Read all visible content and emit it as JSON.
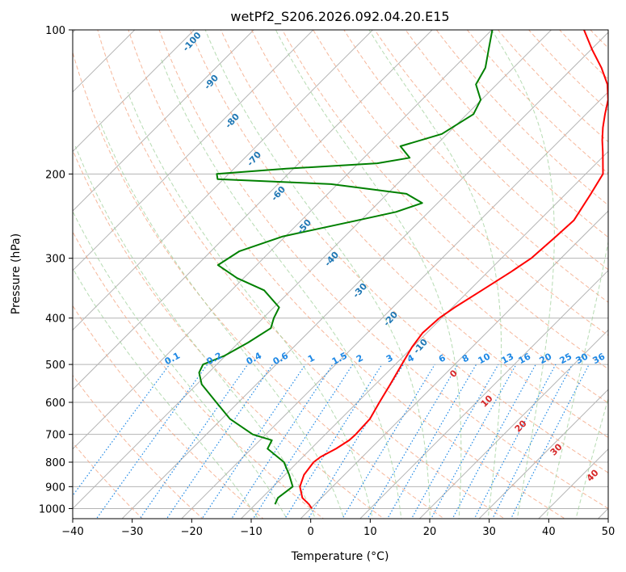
{
  "chart_data": {
    "type": "line",
    "title": "wetPf2_S206.2026.092.04.20.E15",
    "xlabel": "Temperature (°C)",
    "ylabel": "Pressure (hPa)",
    "xlim": [
      -40,
      50
    ],
    "ylim": [
      1050,
      100
    ],
    "y_scale": "log",
    "skew": "skew-T",
    "grid": true,
    "x_ticks": [
      -40,
      -30,
      -20,
      -10,
      0,
      10,
      20,
      30,
      40,
      50
    ],
    "x_tick_labels": [
      "−40",
      "−30",
      "−20",
      "−10",
      "0",
      "10",
      "20",
      "30",
      "40",
      "50"
    ],
    "y_ticks": [
      100,
      200,
      300,
      400,
      500,
      600,
      700,
      800,
      900,
      1000
    ],
    "y_tick_labels": [
      "100",
      "200",
      "300",
      "400",
      "500",
      "600",
      "700",
      "800",
      "900",
      "1000"
    ],
    "series": [
      {
        "role": "temperature",
        "color": "#ff0000",
        "points": [
          [
            1000,
            0.2
          ],
          [
            980,
            -1.0
          ],
          [
            950,
            -3.2
          ],
          [
            900,
            -5.5
          ],
          [
            850,
            -6.8
          ],
          [
            800,
            -7.3
          ],
          [
            780,
            -7.0
          ],
          [
            750,
            -5.8
          ],
          [
            720,
            -5.0
          ],
          [
            700,
            -4.9
          ],
          [
            650,
            -5.1
          ],
          [
            600,
            -6.3
          ],
          [
            550,
            -7.5
          ],
          [
            500,
            -8.9
          ],
          [
            460,
            -10.1
          ],
          [
            430,
            -10.7
          ],
          [
            400,
            -10.4
          ],
          [
            380,
            -9.6
          ],
          [
            350,
            -7.9
          ],
          [
            320,
            -6.1
          ],
          [
            300,
            -5.0
          ],
          [
            270,
            -4.5
          ],
          [
            250,
            -4.2
          ],
          [
            220,
            -5.8
          ],
          [
            200,
            -7.1
          ],
          [
            180,
            -10.8
          ],
          [
            170,
            -12.9
          ],
          [
            160,
            -14.9
          ],
          [
            150,
            -16.8
          ],
          [
            140,
            -18.7
          ],
          [
            130,
            -21.4
          ],
          [
            120,
            -25.2
          ],
          [
            110,
            -29.8
          ],
          [
            100,
            -34.5
          ]
        ]
      },
      {
        "role": "dewpoint",
        "color": "#008000",
        "points": [
          [
            980,
            -6.7
          ],
          [
            950,
            -7.3
          ],
          [
            900,
            -6.7
          ],
          [
            850,
            -9.3
          ],
          [
            800,
            -12.3
          ],
          [
            750,
            -17.3
          ],
          [
            720,
            -18.0
          ],
          [
            700,
            -22.2
          ],
          [
            650,
            -28.6
          ],
          [
            600,
            -33.7
          ],
          [
            550,
            -39.2
          ],
          [
            520,
            -41.6
          ],
          [
            500,
            -42.3
          ],
          [
            480,
            -40.2
          ],
          [
            450,
            -38.4
          ],
          [
            420,
            -37.0
          ],
          [
            400,
            -38.2
          ],
          [
            380,
            -39.1
          ],
          [
            350,
            -44.5
          ],
          [
            330,
            -51.1
          ],
          [
            310,
            -56.5
          ],
          [
            290,
            -55.2
          ],
          [
            270,
            -50.4
          ],
          [
            250,
            -40.6
          ],
          [
            240,
            -35.5
          ],
          [
            230,
            -32.6
          ],
          [
            220,
            -36.8
          ],
          [
            210,
            -51.1
          ],
          [
            205,
            -71.0
          ],
          [
            200,
            -72.0
          ],
          [
            195,
            -61.2
          ],
          [
            190,
            -46.8
          ],
          [
            185,
            -42.3
          ],
          [
            175,
            -45.8
          ],
          [
            165,
            -40.9
          ],
          [
            150,
            -38.9
          ],
          [
            140,
            -40.1
          ],
          [
            130,
            -43.5
          ],
          [
            120,
            -44.7
          ],
          [
            110,
            -47.2
          ],
          [
            100,
            -49.9
          ]
        ]
      }
    ],
    "mixing_ratio_labels": [
      "0.1",
      "0.2",
      "0.4",
      "0.6",
      "1",
      "1.5",
      "2",
      "3",
      "4",
      "6",
      "8",
      "10",
      "13",
      "16",
      "20",
      "25",
      "30",
      "36"
    ],
    "dry_adiabat_labels": [
      "-100",
      "-90",
      "-80",
      "-70",
      "-60",
      "-50",
      "-40",
      "-30",
      "-20",
      "-10"
    ],
    "moist_adiabat_labels": [
      "0",
      "10",
      "20",
      "30",
      "40"
    ],
    "colors": {
      "temperature": "#ff0000",
      "dewpoint": "#008000",
      "isotherm": "#b4b4b4",
      "dry_adiabat": "#f4a582",
      "moist_adiabat": "#9ecf98",
      "mixing_ratio": "#1e88e5",
      "dry_label": "#1f77b4",
      "moist_label": "#d62728",
      "zero_moist_label": "#808080"
    }
  }
}
